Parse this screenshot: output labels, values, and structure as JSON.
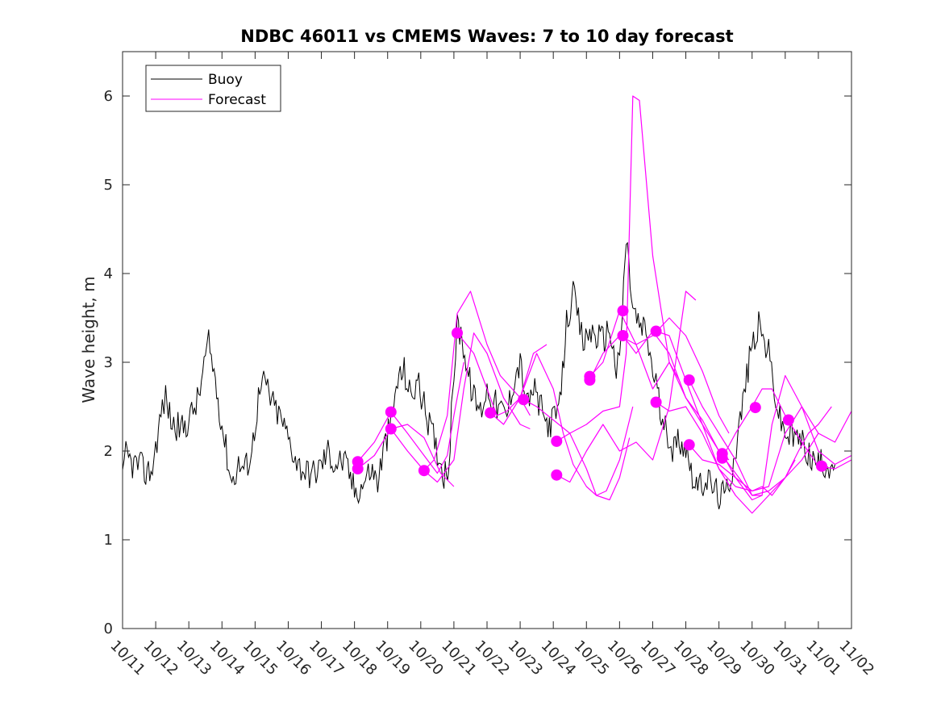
{
  "chart_data": {
    "type": "line",
    "title": "NDBC 46011 vs CMEMS Waves: 7 to 10 day forecast",
    "xlabel": "",
    "ylabel": "Wave height, m",
    "xlim": [
      0,
      22
    ],
    "ylim": [
      0,
      6.5
    ],
    "grid": false,
    "legend_location": "top-left",
    "x_tick_labels": [
      "10/11",
      "10/12",
      "10/13",
      "10/14",
      "10/15",
      "10/16",
      "10/17",
      "10/18",
      "10/19",
      "10/20",
      "10/21",
      "10/22",
      "10/23",
      "10/24",
      "10/25",
      "10/26",
      "10/27",
      "10/28",
      "10/29",
      "10/30",
      "10/31",
      "11/01",
      "11/02"
    ],
    "y_ticks": [
      0,
      1,
      2,
      3,
      4,
      5,
      6
    ],
    "colors": {
      "buoy": "#000000",
      "forecast": "#ff00ff"
    },
    "series": [
      {
        "name": "Buoy",
        "color": "#000000",
        "x": [
          0,
          0.1,
          0.3,
          0.5,
          0.7,
          0.9,
          1.0,
          1.2,
          1.3,
          1.5,
          1.8,
          2.0,
          2.3,
          2.5,
          2.6,
          2.8,
          3.0,
          3.2,
          3.3,
          3.5,
          3.7,
          3.9,
          4.1,
          4.3,
          4.5,
          4.8,
          5.0,
          5.3,
          5.6,
          5.8,
          6.0,
          6.2,
          6.4,
          6.6,
          6.8,
          7.0,
          7.2,
          7.5,
          7.7,
          7.9,
          8.1,
          8.3,
          8.5,
          8.7,
          8.9,
          9.1,
          9.3,
          9.5,
          9.7,
          9.85,
          10.0,
          10.1,
          10.25,
          10.4,
          10.6,
          10.8,
          11.0,
          11.3,
          11.6,
          11.8,
          12.0,
          12.2,
          12.4,
          12.6,
          12.8,
          13.0,
          13.2,
          13.4,
          13.6,
          13.8,
          13.9,
          14.1,
          14.3,
          14.5,
          14.7,
          14.9,
          15.0,
          15.2,
          15.4,
          15.6,
          15.8,
          16.0,
          16.1,
          16.3,
          16.5,
          16.6,
          16.8,
          17.0,
          17.2,
          17.4,
          17.6,
          17.8,
          18.0,
          18.2,
          18.4,
          18.6,
          18.8,
          19.0,
          19.2,
          19.5,
          19.8,
          20.0,
          20.2,
          20.4,
          20.6,
          20.8,
          21.0,
          21.2,
          21.5
        ],
        "y": [
          1.65,
          1.95,
          1.85,
          1.85,
          1.75,
          1.8,
          2.05,
          2.5,
          2.6,
          2.3,
          2.25,
          2.35,
          2.6,
          3.05,
          3.2,
          2.8,
          2.3,
          1.85,
          1.65,
          1.85,
          1.8,
          2.0,
          2.6,
          2.8,
          2.55,
          2.35,
          2.15,
          1.85,
          1.75,
          1.75,
          1.85,
          2.0,
          1.85,
          1.9,
          1.8,
          1.55,
          1.6,
          1.8,
          1.65,
          2.05,
          2.3,
          2.8,
          2.9,
          2.6,
          2.8,
          2.5,
          2.25,
          2.0,
          1.75,
          1.85,
          2.9,
          3.4,
          3.3,
          2.9,
          2.6,
          2.45,
          2.7,
          2.5,
          2.4,
          2.8,
          3.0,
          2.5,
          2.7,
          2.5,
          2.3,
          2.35,
          2.5,
          3.45,
          3.75,
          3.4,
          3.2,
          3.35,
          3.3,
          3.25,
          3.4,
          2.9,
          3.0,
          4.4,
          3.6,
          3.4,
          3.35,
          2.9,
          2.8,
          2.25,
          2.2,
          2.0,
          2.15,
          2.05,
          1.75,
          1.55,
          1.7,
          1.6,
          1.5,
          1.5,
          1.8,
          2.25,
          2.75,
          3.2,
          3.4,
          3.1,
          2.4,
          2.2,
          2.15,
          2.15,
          2.05,
          1.9,
          1.85,
          1.85,
          1.85
        ]
      },
      {
        "name": "Forecast",
        "color": "#ff00ff",
        "runs": [
          {
            "x": [
              7.1,
              7.6,
              8.1,
              8.6,
              9.1,
              9.6,
              10.0
            ],
            "y": [
              1.8,
              1.95,
              2.25,
              2.3,
              2.15,
              1.75,
              1.6
            ]
          },
          {
            "x": [
              7.1,
              7.6,
              8.1,
              8.6,
              9.1,
              9.5,
              9.8,
              10.0,
              10.3
            ],
            "y": [
              1.88,
              2.1,
              2.44,
              2.2,
              1.95,
              1.75,
              1.95,
              2.4,
              3.0
            ]
          },
          {
            "x": [
              8.1,
              8.6,
              9.1,
              9.4,
              9.8,
              10.1,
              10.5,
              11.0,
              11.4,
              12.0,
              12.3
            ],
            "y": [
              2.25,
              2.0,
              1.78,
              1.9,
              2.4,
              3.55,
              3.8,
              3.2,
              2.85,
              2.6,
              2.4
            ]
          },
          {
            "x": [
              9.1,
              9.5,
              10.0,
              10.3,
              10.6,
              11.0,
              11.5,
              12.0,
              12.3
            ],
            "y": [
              1.78,
              1.65,
              1.9,
              2.7,
              3.33,
              3.1,
              2.6,
              2.3,
              2.25
            ]
          },
          {
            "x": [
              10.1,
              10.6,
              11.0,
              11.3,
              11.6,
              12.0,
              12.4,
              12.8
            ],
            "y": [
              3.33,
              3.1,
              2.7,
              2.4,
              2.45,
              2.6,
              3.1,
              3.2
            ]
          },
          {
            "x": [
              11.1,
              11.5,
              12.0,
              12.5,
              13.0,
              13.3,
              13.6,
              14.0,
              14.3,
              14.6,
              15.0,
              15.4
            ],
            "y": [
              2.43,
              2.3,
              2.6,
              3.1,
              2.7,
              2.2,
              1.85,
              1.6,
              1.5,
              1.55,
              1.9,
              2.5
            ]
          },
          {
            "x": [
              12.1,
              12.5,
              13.0,
              13.5,
              14.0,
              14.3,
              14.7,
              15.0,
              15.3
            ],
            "y": [
              2.58,
              2.5,
              2.35,
              2.2,
              1.8,
              1.5,
              1.45,
              1.7,
              2.15
            ]
          },
          {
            "x": [
              13.1,
              13.5,
              14.0,
              14.5,
              15.0,
              15.2,
              15.4,
              15.6,
              16.0,
              16.5,
              16.8
            ],
            "y": [
              2.11,
              2.2,
              2.3,
              2.45,
              2.5,
              3.1,
              6.0,
              5.95,
              4.2,
              3.0,
              2.8
            ]
          },
          {
            "x": [
              13.1,
              13.5,
              14.0,
              14.5,
              15.0,
              15.5,
              16.0,
              16.5,
              17.0,
              17.3
            ],
            "y": [
              1.73,
              1.65,
              2.0,
              2.3,
              2.0,
              2.1,
              1.9,
              2.5,
              3.8,
              3.7
            ]
          },
          {
            "x": [
              14.1,
              14.5,
              15.0,
              15.5,
              16.0,
              16.5,
              17.0,
              17.5,
              18.0,
              18.3
            ],
            "y": [
              2.8,
              3.1,
              3.3,
              3.2,
              3.3,
              3.5,
              3.3,
              2.9,
              2.4,
              2.2
            ]
          },
          {
            "x": [
              14.1,
              14.5,
              15.0,
              15.5,
              16.0,
              16.5,
              17.0,
              17.5,
              18.0,
              18.3
            ],
            "y": [
              2.84,
              3.0,
              3.58,
              3.2,
              2.7,
              3.0,
              2.6,
              2.3,
              2.0,
              1.9
            ]
          },
          {
            "x": [
              15.1,
              15.5,
              16.0,
              16.5,
              17.0,
              17.5,
              18.0,
              18.5,
              19.0,
              19.5,
              20.0,
              20.3
            ],
            "y": [
              3.3,
              3.1,
              3.35,
              3.1,
              2.6,
              2.35,
              2.0,
              1.75,
              1.5,
              1.55,
              1.7,
              1.9
            ]
          },
          {
            "x": [
              16.1,
              16.5,
              17.0,
              17.5,
              18.0,
              18.5,
              19.0,
              19.3,
              19.6,
              20.0,
              20.4,
              20.7,
              21.0,
              21.4
            ],
            "y": [
              2.55,
              2.45,
              2.5,
              2.2,
              1.8,
              1.6,
              1.55,
              1.6,
              1.5,
              1.7,
              2.0,
              2.2,
              2.3,
              2.5
            ]
          },
          {
            "x": [
              16.1,
              16.5,
              17.0,
              17.5,
              18.0,
              18.5,
              19.0,
              19.5,
              20.0,
              20.5,
              21.0
            ],
            "y": [
              3.35,
              3.3,
              2.8,
              2.3,
              1.8,
              1.5,
              1.3,
              1.5,
              1.7,
              1.9,
              2.2
            ]
          },
          {
            "x": [
              17.1,
              17.5,
              18.0,
              18.5,
              19.0,
              19.3,
              19.6,
              20.0,
              20.5,
              21.0,
              21.5,
              22.0
            ],
            "y": [
              2.8,
              2.5,
              2.2,
              1.9,
              1.5,
              1.5,
              2.3,
              2.85,
              2.5,
              2.0,
              1.85,
              1.95
            ]
          },
          {
            "x": [
              17.1,
              17.5,
              18.0,
              18.5,
              19.0,
              19.5,
              20.0,
              20.5,
              21.0,
              21.5,
              22.0
            ],
            "y": [
              2.07,
              1.9,
              1.85,
              1.7,
              1.55,
              1.6,
              2.2,
              2.5,
              2.2,
              2.1,
              2.45
            ]
          },
          {
            "x": [
              18.1,
              18.5,
              19.0,
              19.3,
              19.6,
              20.0,
              20.5,
              21.0,
              21.5,
              22.0
            ],
            "y": [
              1.92,
              2.2,
              2.5,
              2.7,
              2.7,
              2.4,
              2.1,
              1.83,
              1.8,
              1.9
            ]
          },
          {
            "x": [
              18.1,
              18.5,
              19.0,
              19.3
            ],
            "y": [
              1.97,
              1.7,
              1.45,
              1.5
            ]
          }
        ]
      }
    ],
    "forecast_markers": {
      "x": [
        7.1,
        7.1,
        8.1,
        8.1,
        9.1,
        10.1,
        11.1,
        12.1,
        13.1,
        13.1,
        14.1,
        14.1,
        15.1,
        15.1,
        16.1,
        16.1,
        17.1,
        17.1,
        18.1,
        18.1,
        19.1,
        20.1,
        21.1
      ],
      "y": [
        1.8,
        1.88,
        2.25,
        2.44,
        1.78,
        3.33,
        2.43,
        2.58,
        2.11,
        1.73,
        2.8,
        2.84,
        3.58,
        3.3,
        2.55,
        3.35,
        2.8,
        2.07,
        1.92,
        1.97,
        2.49,
        2.35,
        1.83
      ]
    }
  },
  "legend": {
    "buoy_label": "Buoy",
    "forecast_label": "Forecast"
  }
}
